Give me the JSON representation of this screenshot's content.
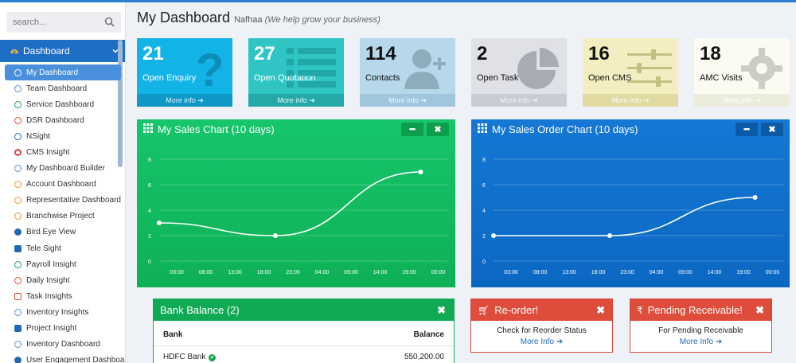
{
  "search": {
    "placeholder": "search..."
  },
  "sidebar": {
    "section": "Dashboard",
    "items": [
      {
        "label": "My Dashboard",
        "icon": "gauge-icon",
        "color": "#ffffff"
      },
      {
        "label": "Team Dashboard",
        "icon": "gauge-icon",
        "color": "#5a8ec9"
      },
      {
        "label": "Service Dashboard",
        "icon": "gauge-icon",
        "color": "#1aa34a"
      },
      {
        "label": "DSR Dashboard",
        "icon": "gauge-icon",
        "color": "#d9473a"
      },
      {
        "label": "NSight",
        "icon": "search-icon",
        "color": "#2069b8"
      },
      {
        "label": "CMS Insight",
        "icon": "lifebuoy-icon",
        "color": "#d9473a"
      },
      {
        "label": "My Dashboard Builder",
        "icon": "gauge-icon",
        "color": "#5a8ec9"
      },
      {
        "label": "Account Dashboard",
        "icon": "gauge-icon",
        "color": "#e8902a"
      },
      {
        "label": "Representative Dashboard",
        "icon": "gauge-icon",
        "color": "#e8902a"
      },
      {
        "label": "Branchwise Project",
        "icon": "gauge-icon",
        "color": "#e8902a"
      },
      {
        "label": "Bird Eye View",
        "icon": "eye-icon",
        "color": "#2069b8"
      },
      {
        "label": "Tele Sight",
        "icon": "phone-icon",
        "color": "#2069b8"
      },
      {
        "label": "Payroll Insight",
        "icon": "gauge-icon",
        "color": "#1aa34a"
      },
      {
        "label": "Daily Insight",
        "icon": "clock-icon",
        "color": "#d9473a"
      },
      {
        "label": "Task Insights",
        "icon": "tasks-icon",
        "color": "#d9473a"
      },
      {
        "label": "Inventory Insights",
        "icon": "gauge-icon",
        "color": "#5a8ec9"
      },
      {
        "label": "Project Insight",
        "icon": "trophy-icon",
        "color": "#2069b8"
      },
      {
        "label": "Inventory Dashboard",
        "icon": "gauge-icon",
        "color": "#5a8ec9"
      },
      {
        "label": "User Engagement Dashboard",
        "icon": "user-icon",
        "color": "#2069b8"
      }
    ]
  },
  "header": {
    "title": "My Dashboard",
    "user": "Nafhaa",
    "tagline": "(We help grow your business)"
  },
  "tiles": [
    {
      "value": "21",
      "label": "Open Enquiry",
      "more": "More info"
    },
    {
      "value": "27",
      "label": "Open Quotation",
      "more": "More info"
    },
    {
      "value": "114",
      "label": "Contacts",
      "more": "More info"
    },
    {
      "value": "2",
      "label": "Open Task",
      "more": "More info"
    },
    {
      "value": "16",
      "label": "Open CMS",
      "more": "More info"
    },
    {
      "value": "18",
      "label": "AMC Visits",
      "more": "More info"
    }
  ],
  "sales_chart": {
    "title": "My Sales Chart (10 days)"
  },
  "order_chart": {
    "title": "My Sales Order Chart (10 days)"
  },
  "chart_data": [
    {
      "type": "line",
      "title": "My Sales Chart (10 days)",
      "x": [
        "03:00",
        "08:00",
        "13:00",
        "18:00",
        "23:00",
        "04:00",
        "09:00",
        "14:00",
        "19:00",
        "00:00"
      ],
      "points": [
        {
          "x": "03:00",
          "y": 3
        },
        {
          "x": "23:00",
          "y": 2
        },
        {
          "x": "00:00",
          "y": 7
        }
      ],
      "yticks": [
        0,
        2,
        4,
        6,
        8
      ],
      "ylim": [
        0,
        8
      ],
      "grid": true
    },
    {
      "type": "line",
      "title": "My Sales Order Chart (10 days)",
      "x": [
        "03:00",
        "08:00",
        "13:00",
        "18:00",
        "23:00",
        "04:00",
        "09:00",
        "14:00",
        "19:00",
        "00:00"
      ],
      "points": [
        {
          "x": "03:00",
          "y": 2
        },
        {
          "x": "23:00",
          "y": 2
        },
        {
          "x": "00:00",
          "y": 5
        }
      ],
      "yticks": [
        0,
        2,
        4,
        6,
        8
      ],
      "ylim": [
        0,
        8
      ],
      "grid": true
    }
  ],
  "bank": {
    "title": "Bank Balance (2)",
    "columns": [
      "Bank",
      "Balance"
    ],
    "rows": [
      {
        "bank": "HDFC Bank",
        "balance": "550,200.00"
      }
    ]
  },
  "reorder": {
    "title": "Re-order!",
    "text": "Check for Reorder Status",
    "link": "More Info"
  },
  "receivable": {
    "title": "Pending Receivable!",
    "text": "For Pending Receivable",
    "link": "More Info"
  },
  "colors": {
    "green_panel": "#0eb056",
    "blue_panel": "#0b68c2",
    "alert_red": "#de4c3b",
    "menu_blue": "#1f6ec6"
  }
}
